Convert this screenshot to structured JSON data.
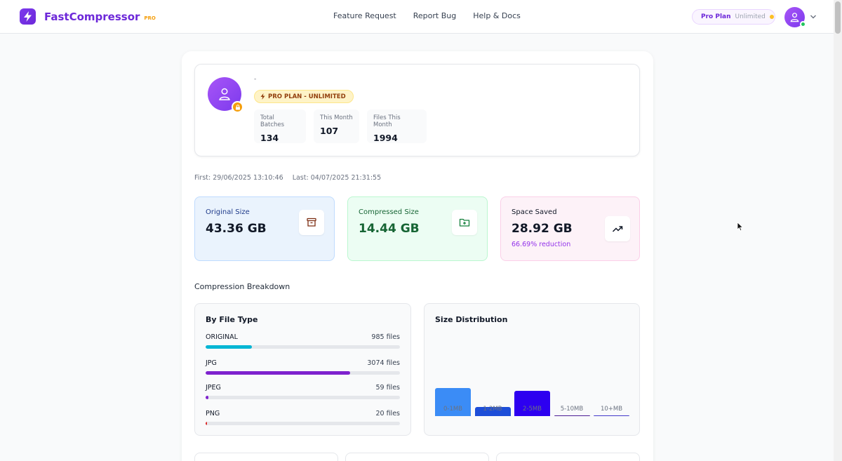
{
  "header": {
    "brand": "FastCompressor",
    "brand_badge": "PRO",
    "nav": [
      "Feature Request",
      "Report Bug",
      "Help & Docs"
    ],
    "plan_pill": {
      "name": "Pro Plan",
      "status": "Unlimited"
    }
  },
  "profile": {
    "name": "-",
    "plan_badge": "PRO PLAN - UNLIMITED",
    "stats": [
      {
        "label": "Total Batches",
        "value": "134"
      },
      {
        "label": "This Month",
        "value": "107"
      },
      {
        "label": "Files This Month",
        "value": "1994"
      }
    ]
  },
  "dates": {
    "first": "First: 29/06/2025 13:10:46",
    "last": "Last: 04/07/2025 21:31:55"
  },
  "metrics": {
    "original": {
      "label": "Original Size",
      "value": "43.36 GB"
    },
    "compressed": {
      "label": "Compressed Size",
      "value": "14.44 GB"
    },
    "saved": {
      "label": "Space Saved",
      "value": "28.92 GB",
      "sub": "66.69% reduction"
    }
  },
  "breakdown": {
    "title": "Compression Breakdown",
    "file_type": {
      "title": "By File Type",
      "items": [
        {
          "name": "ORIGINAL",
          "count": "985 files",
          "fraction": 0.24,
          "color": "#06b6d4"
        },
        {
          "name": "JPG",
          "count": "3074 files",
          "fraction": 0.745,
          "color": "#7e22ce"
        },
        {
          "name": "JPEG",
          "count": "59 files",
          "fraction": 0.014,
          "color": "#7e22ce"
        },
        {
          "name": "PNG",
          "count": "20 files",
          "fraction": 0.005,
          "color": "#dc2626"
        }
      ]
    },
    "size_distribution": {
      "title": "Size Distribution",
      "chart_data": {
        "type": "bar",
        "categories": [
          "0-1MB",
          "1-2MB",
          "2-5MB",
          "5-10MB",
          "10+MB"
        ],
        "values": [
          1000,
          330,
          910,
          10,
          10
        ],
        "colors": [
          "#3b8cf6",
          "#1d4ed8",
          "#2d00f0",
          "#4c1d95",
          "#4338ca"
        ]
      }
    }
  }
}
